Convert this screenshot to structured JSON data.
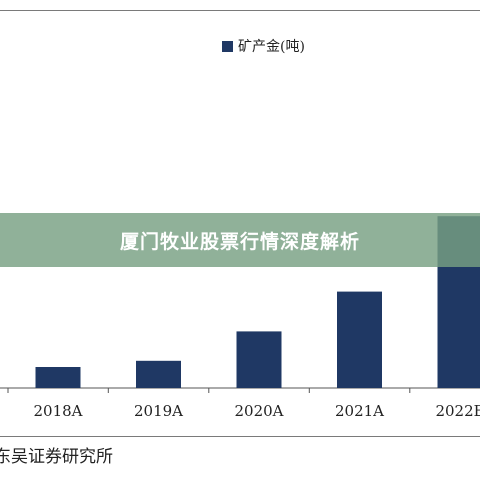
{
  "banner": {
    "title": "厦门牧业股票行情深度解析"
  },
  "source": {
    "text": "东吴证券研究所"
  },
  "chart_data": {
    "type": "bar",
    "categories": [
      "2018A",
      "2019A",
      "2020A",
      "2021A",
      "2022E"
    ],
    "series": [
      {
        "name": "矿产金(吨)",
        "values": [
          5,
          6.5,
          13.5,
          23,
          41
        ]
      }
    ],
    "bar_color": "#1f3864",
    "ylim": [
      0,
      42
    ]
  }
}
